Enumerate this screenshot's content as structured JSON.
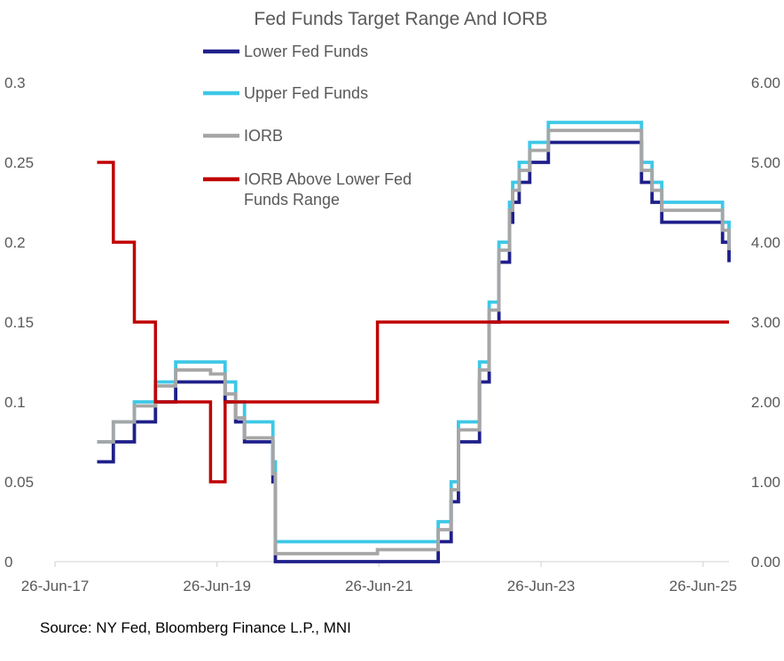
{
  "chart_data": {
    "type": "line",
    "title": "Fed Funds Target Range And IORB",
    "source": "Source: NY Fed, Bloomberg Finance L.P., MNI",
    "x_ticks": [
      "26-Jun-17",
      "26-Jun-19",
      "26-Jun-21",
      "26-Jun-23",
      "26-Jun-25"
    ],
    "x_range": [
      2017.48,
      2025.8
    ],
    "y_left": {
      "range": [
        0,
        0.3
      ],
      "ticks": [
        "0",
        "0.05",
        "0.1",
        "0.15",
        "0.2",
        "0.25",
        "0.3"
      ]
    },
    "y_right": {
      "range": [
        0,
        6
      ],
      "ticks": [
        "0.00",
        "1.00",
        "2.00",
        "3.00",
        "4.00",
        "5.00",
        "6.00"
      ]
    },
    "legend": [
      {
        "name": "Lower Fed Funds",
        "color": "#1f1f8a"
      },
      {
        "name": "Upper Fed Funds",
        "color": "#3ec8e6"
      },
      {
        "name": "IORB",
        "color": "#a6a6a6"
      },
      {
        "name": "IORB Above Lower Fed Funds Range",
        "lines": [
          "IORB Above Lower Fed",
          "Funds Range"
        ],
        "color": "#c00000"
      }
    ],
    "series": [
      {
        "name": "Lower Fed Funds",
        "axis": "right",
        "color": "#1f1f8a",
        "points": [
          [
            2018.0,
            1.25
          ],
          [
            2018.2,
            1.5
          ],
          [
            2018.46,
            1.75
          ],
          [
            2018.72,
            2.0
          ],
          [
            2018.97,
            2.25
          ],
          [
            2019.58,
            2.0
          ],
          [
            2019.71,
            1.75
          ],
          [
            2019.82,
            1.5
          ],
          [
            2020.17,
            1.0
          ],
          [
            2020.2,
            0.0
          ],
          [
            2022.21,
            0.25
          ],
          [
            2022.37,
            0.75
          ],
          [
            2022.46,
            1.5
          ],
          [
            2022.72,
            2.25
          ],
          [
            2022.84,
            3.0
          ],
          [
            2022.96,
            3.75
          ],
          [
            2023.09,
            4.25
          ],
          [
            2023.13,
            4.5
          ],
          [
            2023.21,
            4.75
          ],
          [
            2023.34,
            5.0
          ],
          [
            2023.57,
            5.25
          ],
          [
            2024.72,
            4.75
          ],
          [
            2024.85,
            4.5
          ],
          [
            2024.97,
            4.25
          ],
          [
            2025.72,
            4.0
          ],
          [
            2025.8,
            3.75
          ]
        ]
      },
      {
        "name": "Upper Fed Funds",
        "axis": "right",
        "color": "#3ec8e6",
        "points": [
          [
            2018.0,
            1.5
          ],
          [
            2018.2,
            1.75
          ],
          [
            2018.46,
            2.0
          ],
          [
            2018.72,
            2.25
          ],
          [
            2018.97,
            2.5
          ],
          [
            2019.58,
            2.25
          ],
          [
            2019.71,
            2.0
          ],
          [
            2019.82,
            1.75
          ],
          [
            2020.17,
            1.25
          ],
          [
            2020.2,
            0.25
          ],
          [
            2022.21,
            0.5
          ],
          [
            2022.37,
            1.0
          ],
          [
            2022.46,
            1.75
          ],
          [
            2022.72,
            2.5
          ],
          [
            2022.84,
            3.25
          ],
          [
            2022.96,
            4.0
          ],
          [
            2023.09,
            4.5
          ],
          [
            2023.13,
            4.75
          ],
          [
            2023.21,
            5.0
          ],
          [
            2023.34,
            5.25
          ],
          [
            2023.57,
            5.5
          ],
          [
            2024.72,
            5.0
          ],
          [
            2024.85,
            4.75
          ],
          [
            2024.97,
            4.5
          ],
          [
            2025.72,
            4.25
          ],
          [
            2025.8,
            4.0
          ]
        ]
      },
      {
        "name": "IORB",
        "axis": "right",
        "color": "#a6a6a6",
        "points": [
          [
            2018.0,
            1.5
          ],
          [
            2018.2,
            1.75
          ],
          [
            2018.46,
            1.95
          ],
          [
            2018.72,
            2.2
          ],
          [
            2018.97,
            2.4
          ],
          [
            2019.4,
            2.35
          ],
          [
            2019.58,
            2.1
          ],
          [
            2019.71,
            1.8
          ],
          [
            2019.82,
            1.55
          ],
          [
            2020.17,
            1.1
          ],
          [
            2020.2,
            0.1
          ],
          [
            2021.46,
            0.15
          ],
          [
            2022.21,
            0.4
          ],
          [
            2022.37,
            0.9
          ],
          [
            2022.46,
            1.65
          ],
          [
            2022.72,
            2.4
          ],
          [
            2022.84,
            3.15
          ],
          [
            2022.96,
            3.9
          ],
          [
            2023.09,
            4.4
          ],
          [
            2023.13,
            4.65
          ],
          [
            2023.21,
            4.9
          ],
          [
            2023.34,
            5.15
          ],
          [
            2023.57,
            5.4
          ],
          [
            2024.72,
            4.9
          ],
          [
            2024.85,
            4.65
          ],
          [
            2024.97,
            4.4
          ],
          [
            2025.72,
            4.15
          ],
          [
            2025.8,
            3.9
          ]
        ]
      },
      {
        "name": "IORB Above Lower Fed Funds Range",
        "axis": "left",
        "color": "#c00000",
        "points": [
          [
            2018.0,
            0.25
          ],
          [
            2018.2,
            0.25
          ],
          [
            2018.2,
            0.2
          ],
          [
            2018.46,
            0.2
          ],
          [
            2018.46,
            0.15
          ],
          [
            2018.72,
            0.15
          ],
          [
            2018.72,
            0.1
          ],
          [
            2019.4,
            0.1
          ],
          [
            2019.4,
            0.05
          ],
          [
            2019.58,
            0.05
          ],
          [
            2019.58,
            0.1
          ],
          [
            2020.2,
            0.1
          ],
          [
            2021.46,
            0.1
          ],
          [
            2021.46,
            0.15
          ],
          [
            2025.8,
            0.15
          ]
        ]
      }
    ]
  }
}
